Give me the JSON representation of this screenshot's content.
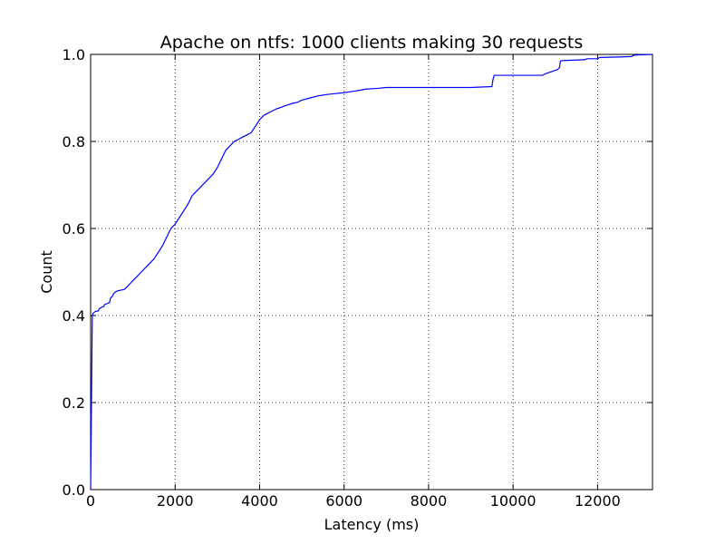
{
  "chart_data": {
    "type": "line",
    "title": "Apache on ntfs: 1000 clients making 30 requests",
    "xlabel": "Latency (ms)",
    "ylabel": "Count",
    "xlim": [
      0,
      13300
    ],
    "ylim": [
      0,
      1.0
    ],
    "grid": true,
    "legend": "none",
    "x_ticks": [
      0,
      2000,
      4000,
      6000,
      8000,
      10000,
      12000
    ],
    "x_tick_labels": [
      "0",
      "2000",
      "4000",
      "6000",
      "8000",
      "10000",
      "12000"
    ],
    "y_ticks": [
      0,
      0.2,
      0.4,
      0.6,
      0.8,
      1.0
    ],
    "y_tick_labels": [
      "0.0",
      "0.2",
      "0.4",
      "0.6",
      "0.8",
      "1.0"
    ],
    "series": [
      {
        "color": "#0000ff",
        "x": [
          0,
          40,
          60,
          120,
          180,
          200,
          280,
          300,
          330,
          450,
          470,
          520,
          540,
          600,
          650,
          700,
          800,
          900,
          950,
          1000,
          1100,
          1200,
          1300,
          1400,
          1500,
          1600,
          1700,
          1800,
          1850,
          1900,
          2000,
          2100,
          2200,
          2300,
          2400,
          2450,
          2500,
          2600,
          2700,
          2800,
          2900,
          3000,
          3100,
          3200,
          3300,
          3400,
          3500,
          3600,
          3700,
          3800,
          3900,
          4000,
          4100,
          4200,
          4300,
          4400,
          4500,
          4600,
          4700,
          4800,
          4900,
          5000,
          5200,
          5400,
          5600,
          5800,
          6000,
          6200,
          6400,
          6500,
          6800,
          7000,
          8000,
          9000,
          9500,
          9520,
          9550,
          10000,
          10500,
          10700,
          10750,
          10900,
          11050,
          11100,
          11120,
          11200,
          11500,
          11700,
          11750,
          12000,
          12050,
          12500,
          12800,
          12850,
          13000,
          13300
        ],
        "y": [
          0,
          0.4,
          0.405,
          0.41,
          0.41,
          0.415,
          0.42,
          0.42,
          0.425,
          0.43,
          0.44,
          0.445,
          0.45,
          0.455,
          0.457,
          0.458,
          0.46,
          0.47,
          0.475,
          0.48,
          0.49,
          0.5,
          0.51,
          0.52,
          0.53,
          0.545,
          0.56,
          0.58,
          0.59,
          0.6,
          0.61,
          0.625,
          0.64,
          0.655,
          0.675,
          0.68,
          0.685,
          0.695,
          0.705,
          0.715,
          0.725,
          0.74,
          0.76,
          0.78,
          0.79,
          0.8,
          0.805,
          0.81,
          0.815,
          0.82,
          0.835,
          0.85,
          0.86,
          0.865,
          0.87,
          0.875,
          0.878,
          0.882,
          0.885,
          0.888,
          0.89,
          0.895,
          0.9,
          0.905,
          0.908,
          0.91,
          0.912,
          0.915,
          0.918,
          0.92,
          0.922,
          0.924,
          0.924,
          0.924,
          0.926,
          0.94,
          0.952,
          0.952,
          0.952,
          0.952,
          0.955,
          0.96,
          0.965,
          0.97,
          0.985,
          0.986,
          0.987,
          0.988,
          0.99,
          0.99,
          0.993,
          0.994,
          0.995,
          0.998,
          0.999,
          1.0
        ]
      }
    ]
  }
}
